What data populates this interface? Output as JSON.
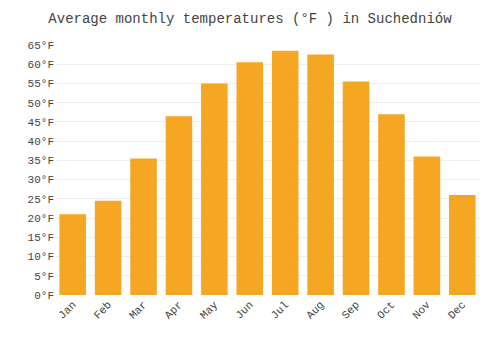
{
  "chart_data": {
    "type": "bar",
    "title": "Average monthly temperatures (°F ) in Suchedniów",
    "categories": [
      "Jan",
      "Feb",
      "Mar",
      "Apr",
      "May",
      "Jun",
      "Jul",
      "Aug",
      "Sep",
      "Oct",
      "Nov",
      "Dec"
    ],
    "values": [
      21,
      24.5,
      35.5,
      46.5,
      55,
      60.5,
      63.5,
      62.5,
      55.5,
      47,
      36,
      26
    ],
    "color": "#F5A623",
    "ylim": [
      0,
      65
    ],
    "yticks": [
      {
        "value": 0,
        "label": "0°F"
      },
      {
        "value": 5,
        "label": "5°F"
      },
      {
        "value": 10,
        "label": "10°F"
      },
      {
        "value": 15,
        "label": "15°F"
      },
      {
        "value": 20,
        "label": "20°F"
      },
      {
        "value": 25,
        "label": "25°F"
      },
      {
        "value": 30,
        "label": "30°F"
      },
      {
        "value": 35,
        "label": "35°F"
      },
      {
        "value": 40,
        "label": "40°F"
      },
      {
        "value": 45,
        "label": "45°F"
      },
      {
        "value": 50,
        "label": "50°F"
      },
      {
        "value": 55,
        "label": "55°F"
      },
      {
        "value": 60,
        "label": "60°F"
      },
      {
        "value": 65,
        "label": "65°F"
      }
    ],
    "grid": true
  }
}
